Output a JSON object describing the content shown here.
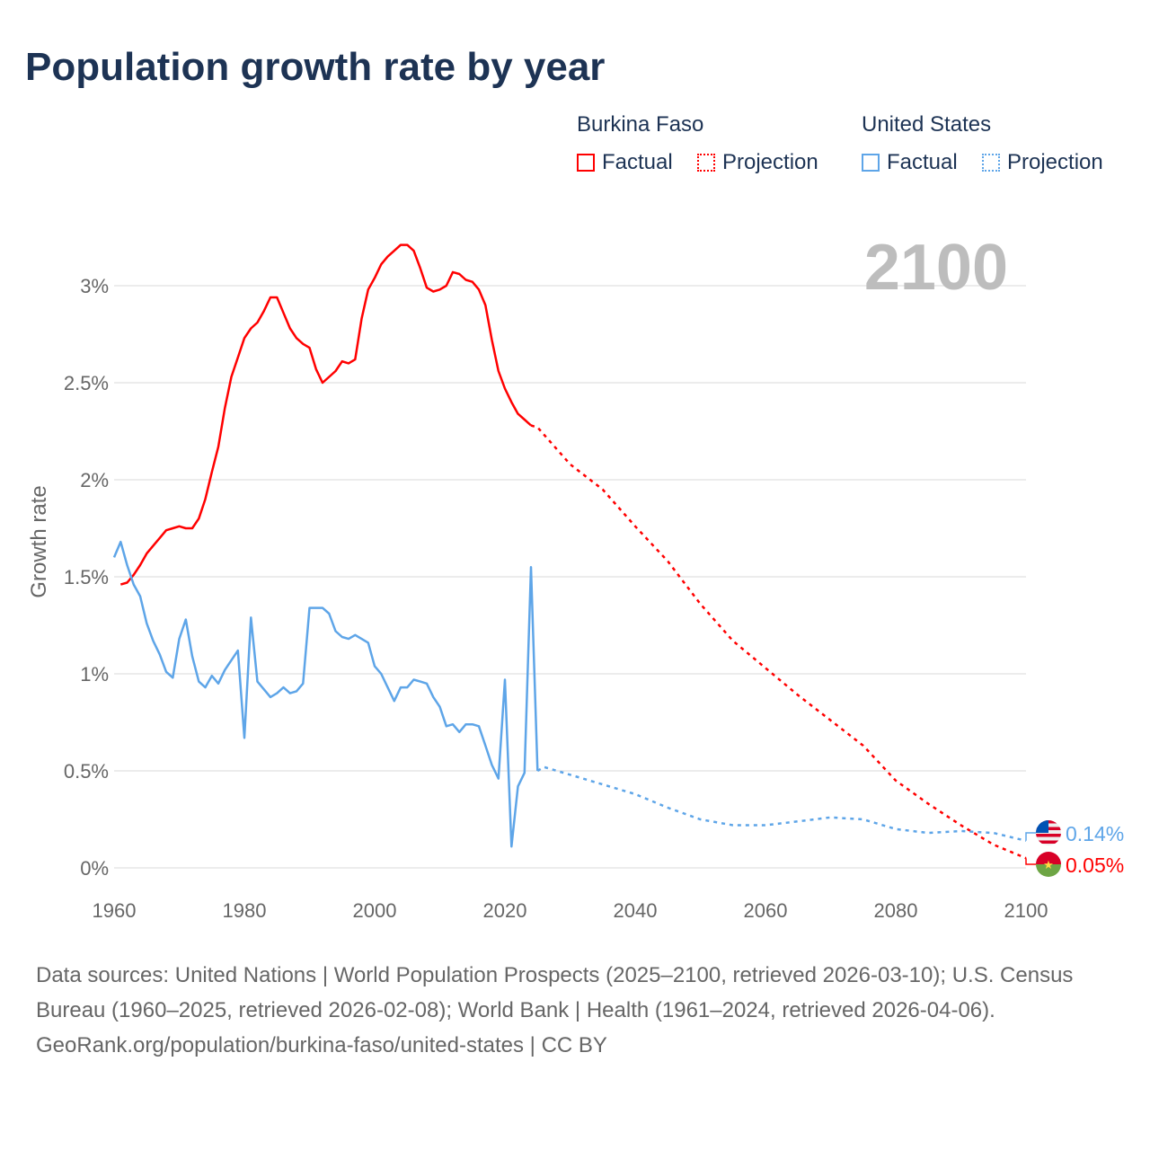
{
  "title": "Population growth rate by year",
  "legend": {
    "groups": [
      {
        "name": "Burkina Faso",
        "color": "#ff0000",
        "factual": "Factual",
        "projection": "Projection"
      },
      {
        "name": "United States",
        "color": "#5ea5e8",
        "factual": "Factual",
        "projection": "Projection"
      }
    ]
  },
  "year_display": "2100",
  "chart_data": {
    "type": "line",
    "title": "Population growth rate by year",
    "xlabel": "",
    "ylabel": "Growth rate",
    "xlim": [
      1960,
      2100
    ],
    "ylim": [
      0,
      3.3
    ],
    "x_ticks": [
      "1960",
      "1980",
      "2000",
      "2020",
      "2040",
      "2060",
      "2080",
      "2100"
    ],
    "x_tick_values": [
      1960,
      1980,
      2000,
      2020,
      2040,
      2060,
      2080,
      2100
    ],
    "y_ticks": [
      "0%",
      "0.5%",
      "1%",
      "1.5%",
      "2%",
      "2.5%",
      "3%"
    ],
    "y_tick_values": [
      0,
      0.5,
      1,
      1.5,
      2,
      2.5,
      3
    ],
    "grid": true,
    "series": [
      {
        "name": "Burkina Faso",
        "color": "#ff0000",
        "end_label": "0.05%",
        "factual": {
          "x": [
            1961,
            1962,
            1963,
            1964,
            1965,
            1966,
            1967,
            1968,
            1969,
            1970,
            1971,
            1972,
            1973,
            1974,
            1975,
            1976,
            1977,
            1978,
            1979,
            1980,
            1981,
            1982,
            1983,
            1984,
            1985,
            1986,
            1987,
            1988,
            1989,
            1990,
            1991,
            1992,
            1993,
            1994,
            1995,
            1996,
            1997,
            1998,
            1999,
            2000,
            2001,
            2002,
            2003,
            2004,
            2005,
            2006,
            2007,
            2008,
            2009,
            2010,
            2011,
            2012,
            2013,
            2014,
            2015,
            2016,
            2017,
            2018,
            2019,
            2020,
            2021,
            2022,
            2023,
            2024
          ],
          "y": [
            1.46,
            1.47,
            1.51,
            1.56,
            1.62,
            1.66,
            1.7,
            1.74,
            1.75,
            1.76,
            1.75,
            1.75,
            1.8,
            1.9,
            2.04,
            2.17,
            2.37,
            2.53,
            2.63,
            2.73,
            2.78,
            2.81,
            2.87,
            2.94,
            2.94,
            2.86,
            2.78,
            2.73,
            2.7,
            2.68,
            2.57,
            2.5,
            2.53,
            2.56,
            2.61,
            2.6,
            2.62,
            2.83,
            2.98,
            3.04,
            3.11,
            3.15,
            3.18,
            3.21,
            3.21,
            3.18,
            3.09,
            2.99,
            2.97,
            2.98,
            3.0,
            3.07,
            3.06,
            3.03,
            3.02,
            2.98,
            2.9,
            2.72,
            2.56,
            2.47,
            2.4,
            2.34,
            2.31,
            2.28
          ]
        },
        "projection": {
          "x": [
            2024,
            2025,
            2030,
            2035,
            2040,
            2045,
            2050,
            2055,
            2060,
            2065,
            2070,
            2075,
            2080,
            2085,
            2090,
            2095,
            2100
          ],
          "y": [
            2.28,
            2.27,
            2.08,
            1.95,
            1.76,
            1.58,
            1.36,
            1.17,
            1.03,
            0.89,
            0.76,
            0.63,
            0.45,
            0.33,
            0.22,
            0.12,
            0.05
          ]
        }
      },
      {
        "name": "United States",
        "color": "#5ea5e8",
        "end_label": "0.14%",
        "factual": {
          "x": [
            1960,
            1961,
            1962,
            1963,
            1964,
            1965,
            1966,
            1967,
            1968,
            1969,
            1970,
            1971,
            1972,
            1973,
            1974,
            1975,
            1976,
            1977,
            1978,
            1979,
            1980,
            1981,
            1982,
            1983,
            1984,
            1985,
            1986,
            1987,
            1988,
            1989,
            1990,
            1991,
            1992,
            1993,
            1994,
            1995,
            1996,
            1997,
            1998,
            1999,
            2000,
            2001,
            2002,
            2003,
            2004,
            2005,
            2006,
            2007,
            2008,
            2009,
            2010,
            2011,
            2012,
            2013,
            2014,
            2015,
            2016,
            2017,
            2018,
            2019,
            2020,
            2021,
            2022,
            2023,
            2024,
            2025
          ],
          "y": [
            1.6,
            1.68,
            1.56,
            1.46,
            1.4,
            1.26,
            1.17,
            1.1,
            1.01,
            0.98,
            1.18,
            1.28,
            1.09,
            0.96,
            0.93,
            0.99,
            0.95,
            1.02,
            1.07,
            1.12,
            0.67,
            1.29,
            0.96,
            0.92,
            0.88,
            0.9,
            0.93,
            0.9,
            0.91,
            0.95,
            1.34,
            1.34,
            1.34,
            1.31,
            1.22,
            1.19,
            1.18,
            1.2,
            1.18,
            1.16,
            1.04,
            1.0,
            0.93,
            0.86,
            0.93,
            0.93,
            0.97,
            0.96,
            0.95,
            0.88,
            0.83,
            0.73,
            0.74,
            0.7,
            0.74,
            0.74,
            0.73,
            0.63,
            0.53,
            0.46,
            0.97,
            0.11,
            0.42,
            0.49,
            1.55,
            0.5
          ]
        },
        "projection": {
          "x": [
            2025,
            2026,
            2030,
            2035,
            2040,
            2045,
            2050,
            2055,
            2060,
            2065,
            2070,
            2075,
            2080,
            2085,
            2090,
            2095,
            2100
          ],
          "y": [
            0.5,
            0.52,
            0.48,
            0.43,
            0.38,
            0.31,
            0.25,
            0.22,
            0.22,
            0.24,
            0.26,
            0.25,
            0.2,
            0.18,
            0.19,
            0.18,
            0.14
          ]
        }
      }
    ]
  },
  "footer": {
    "sources": "Data sources: United Nations | World Population Prospects (2025–2100, retrieved 2026-03-10); U.S. Census Bureau (1960–2025, retrieved 2026-02-08); World Bank | Health (1961–2024, retrieved 2026-04-06).",
    "credit": "GeoRank.org/population/burkina-faso/united-states | CC BY"
  }
}
